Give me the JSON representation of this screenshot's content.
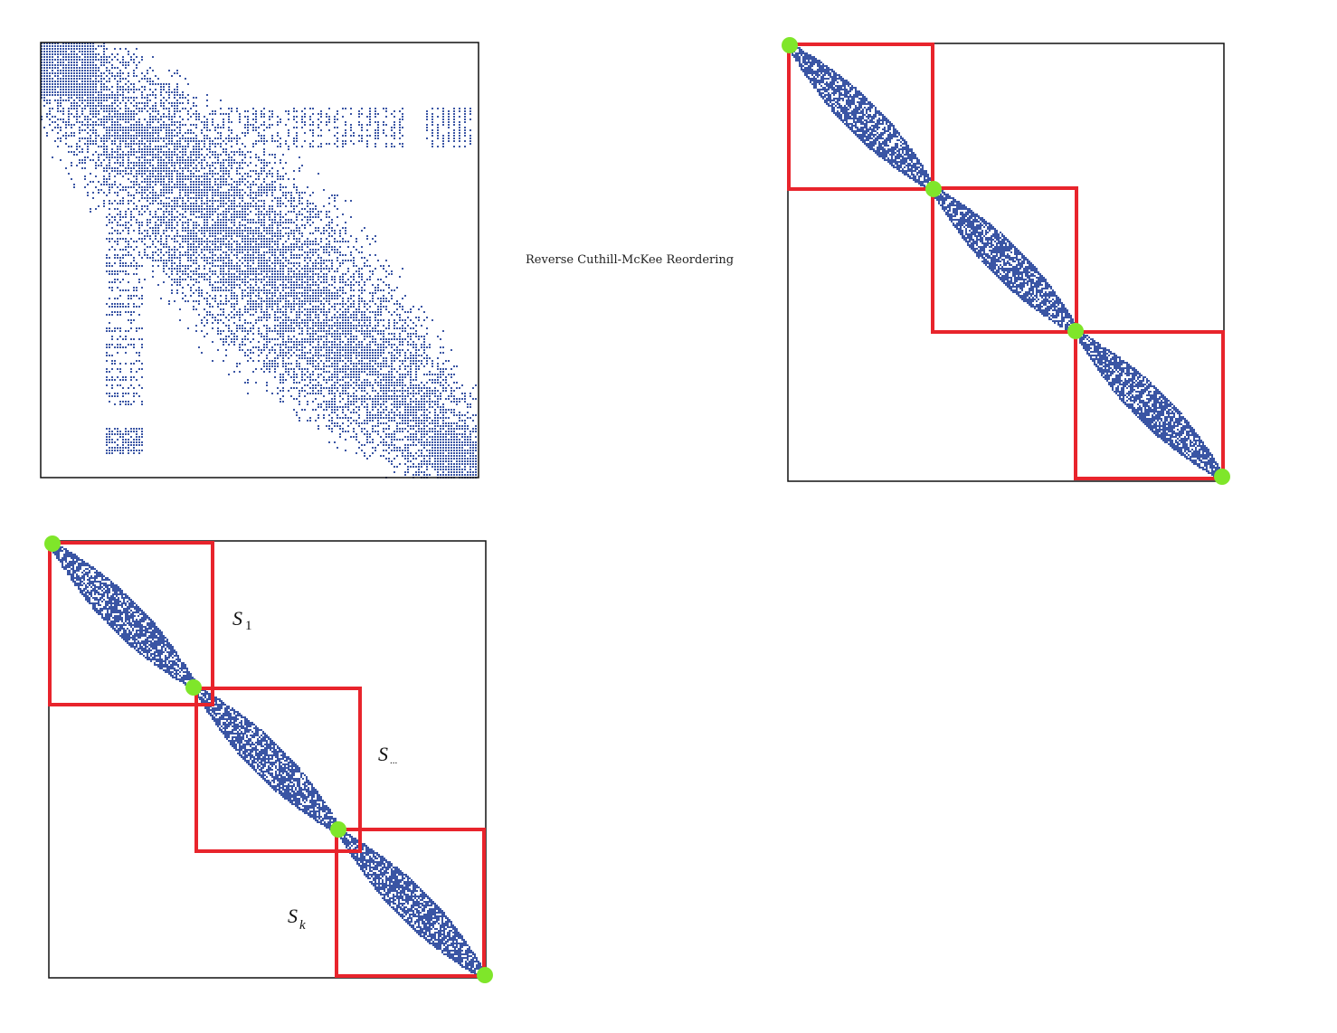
{
  "caption": "Reverse Cuthill-McKee Reordering",
  "colors": {
    "matrix": "#3a55a4",
    "partition_box": "#e8242c",
    "separator_node": "#7fe62a",
    "frame": "#111111",
    "background": "#ffffff"
  },
  "panels": [
    {
      "name": "original-matrix",
      "pattern": "scattered-wide-band"
    },
    {
      "name": "rcm-reordered-matrix",
      "pattern": "narrow-band",
      "partition_blocks": 3
    },
    {
      "name": "partitioned-matrix",
      "pattern": "narrow-band",
      "partition_blocks": 3
    }
  ],
  "subgraph_labels": [
    {
      "main": "S",
      "index": "1"
    },
    {
      "main": "S",
      "index": "..."
    },
    {
      "main": "S",
      "index": "k"
    }
  ]
}
